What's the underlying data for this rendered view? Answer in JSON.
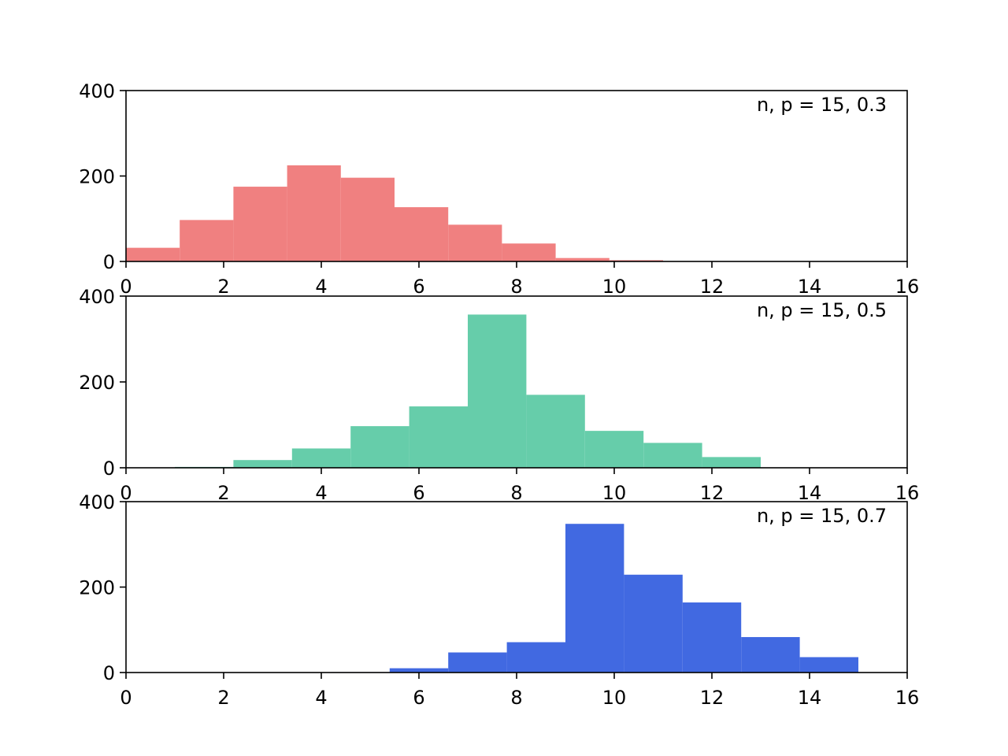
{
  "chart_data": [
    {
      "type": "bar",
      "annotation": "n, p = 15, 0.3",
      "color": "#f08080",
      "xlim": [
        0,
        16
      ],
      "ylim": [
        0,
        400
      ],
      "xticks": [
        "0",
        "2",
        "4",
        "6",
        "8",
        "10",
        "12",
        "14",
        "16"
      ],
      "yticks": [
        "0",
        "200",
        "400"
      ],
      "bins": [
        {
          "x0": 0.0,
          "x1": 1.1,
          "count": 32
        },
        {
          "x0": 1.1,
          "x1": 2.2,
          "count": 97
        },
        {
          "x0": 2.2,
          "x1": 3.3,
          "count": 175
        },
        {
          "x0": 3.3,
          "x1": 4.4,
          "count": 225
        },
        {
          "x0": 4.4,
          "x1": 5.5,
          "count": 196
        },
        {
          "x0": 5.5,
          "x1": 6.6,
          "count": 127
        },
        {
          "x0": 6.6,
          "x1": 7.7,
          "count": 86
        },
        {
          "x0": 7.7,
          "x1": 8.8,
          "count": 42
        },
        {
          "x0": 8.8,
          "x1": 9.9,
          "count": 8
        },
        {
          "x0": 9.9,
          "x1": 11.0,
          "count": 3
        }
      ]
    },
    {
      "type": "bar",
      "annotation": "n, p = 15, 0.5",
      "color": "#66cdaa",
      "xlim": [
        0,
        16
      ],
      "ylim": [
        0,
        400
      ],
      "xticks": [
        "0",
        "2",
        "4",
        "6",
        "8",
        "10",
        "12",
        "14",
        "16"
      ],
      "yticks": [
        "0",
        "200",
        "400"
      ],
      "bins": [
        {
          "x0": 1.0,
          "x1": 2.2,
          "count": 2
        },
        {
          "x0": 2.2,
          "x1": 3.4,
          "count": 18
        },
        {
          "x0": 3.4,
          "x1": 4.6,
          "count": 45
        },
        {
          "x0": 4.6,
          "x1": 5.8,
          "count": 97
        },
        {
          "x0": 5.8,
          "x1": 7.0,
          "count": 143
        },
        {
          "x0": 7.0,
          "x1": 8.2,
          "count": 357
        },
        {
          "x0": 8.2,
          "x1": 9.4,
          "count": 170
        },
        {
          "x0": 9.4,
          "x1": 10.6,
          "count": 86
        },
        {
          "x0": 10.6,
          "x1": 11.8,
          "count": 58
        },
        {
          "x0": 11.8,
          "x1": 13.0,
          "count": 25
        }
      ]
    },
    {
      "type": "bar",
      "annotation": "n, p = 15, 0.7",
      "color": "#4169e1",
      "xlim": [
        0,
        16
      ],
      "ylim": [
        0,
        400
      ],
      "xticks": [
        "0",
        "2",
        "4",
        "6",
        "8",
        "10",
        "12",
        "14",
        "16"
      ],
      "yticks": [
        "0",
        "200",
        "400"
      ],
      "bins": [
        {
          "x0": 3.0,
          "x1": 4.2,
          "count": 0
        },
        {
          "x0": 4.2,
          "x1": 5.4,
          "count": 1
        },
        {
          "x0": 5.4,
          "x1": 6.6,
          "count": 10
        },
        {
          "x0": 6.6,
          "x1": 7.8,
          "count": 47
        },
        {
          "x0": 7.8,
          "x1": 9.0,
          "count": 71
        },
        {
          "x0": 9.0,
          "x1": 10.2,
          "count": 348
        },
        {
          "x0": 10.2,
          "x1": 11.4,
          "count": 229
        },
        {
          "x0": 11.4,
          "x1": 12.6,
          "count": 164
        },
        {
          "x0": 12.6,
          "x1": 13.8,
          "count": 83
        },
        {
          "x0": 13.8,
          "x1": 15.0,
          "count": 36
        }
      ]
    }
  ]
}
